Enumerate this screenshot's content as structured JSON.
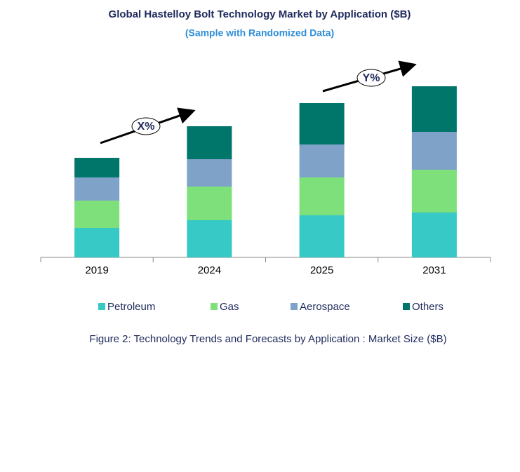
{
  "chart_data": {
    "type": "stacked-bar",
    "title": "Global Hastelloy Bolt Technology Market by Application ($B)",
    "subtitle": "(Sample with Randomized Data)",
    "categories": [
      "2019",
      "2024",
      "2025",
      "2031"
    ],
    "series": [
      {
        "name": "Petroleum",
        "color": "#36c9c6",
        "values": [
          4.2,
          5.3,
          6.0,
          6.4
        ]
      },
      {
        "name": "Gas",
        "color": "#7ee07a",
        "values": [
          3.9,
          4.8,
          5.4,
          6.1
        ]
      },
      {
        "name": "Aerospace",
        "color": "#7fa3c8",
        "values": [
          3.3,
          3.9,
          4.7,
          5.4
        ]
      },
      {
        "name": "Others",
        "color": "#00756a",
        "values": [
          2.8,
          4.7,
          5.9,
          6.5
        ]
      }
    ],
    "annotations": [
      "X%",
      "Y%"
    ],
    "caption": "Figure 2: Technology  Trends  and Forecasts by Application : Market Size ($B)"
  }
}
